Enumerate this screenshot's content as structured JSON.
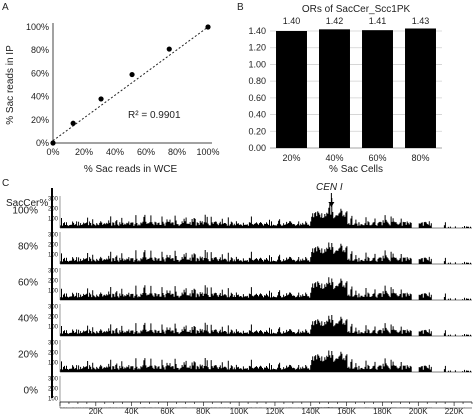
{
  "panels": {
    "a": "A",
    "b": "B",
    "c": "C"
  },
  "chart_data": [
    {
      "type": "scatter",
      "xlabel": "% Sac reads in WCE",
      "ylabel": "% Sac reads in IP",
      "xlim": [
        0,
        100
      ],
      "ylim": [
        0,
        100
      ],
      "x_ticks": [
        "0%",
        "20%",
        "40%",
        "60%",
        "80%",
        "100%"
      ],
      "y_ticks": [
        "0%",
        "20%",
        "40%",
        "60%",
        "80%",
        "100%"
      ],
      "points": [
        {
          "x": 0,
          "y": 0
        },
        {
          "x": 13,
          "y": 17
        },
        {
          "x": 31,
          "y": 38
        },
        {
          "x": 51,
          "y": 59
        },
        {
          "x": 75,
          "y": 81
        },
        {
          "x": 100,
          "y": 100
        }
      ],
      "trendline": {
        "style": "dotted",
        "from": [
          0,
          2
        ],
        "to": [
          100,
          100
        ]
      },
      "annotation": "R² = 0.9901",
      "grid": false
    },
    {
      "type": "bar",
      "title": "ORs of SacCer_Scc1PK",
      "xlabel": "% Sac Cells",
      "categories": [
        "20%",
        "40%",
        "60%",
        "80%"
      ],
      "values": [
        1.4,
        1.42,
        1.41,
        1.43
      ],
      "data_labels": [
        "1.40",
        "1.42",
        "1.41",
        "1.43"
      ],
      "ylim": [
        0,
        1.4
      ],
      "y_ticks": [
        "0.00",
        "0.20",
        "0.40",
        "0.60",
        "0.80",
        "1.00",
        "1.20",
        "1.40"
      ],
      "bar_color": "#000000",
      "grid": "horizontal"
    },
    {
      "type": "area",
      "row_header": "SacCer%",
      "annotation": "CEN I",
      "tracks": [
        {
          "label": "100%",
          "y_ticks": [
            "300",
            "200",
            "100"
          ],
          "cen_peak": 300
        },
        {
          "label": "80%",
          "y_ticks": [
            "300",
            "200",
            "100"
          ],
          "cen_peak": 210
        },
        {
          "label": "60%",
          "y_ticks": [
            "300",
            "200",
            "100"
          ],
          "cen_peak": 215
        },
        {
          "label": "40%",
          "y_ticks": [
            "300",
            "200",
            "100"
          ],
          "cen_peak": 210
        },
        {
          "label": "20%",
          "y_ticks": [
            "300",
            "200",
            "100"
          ],
          "cen_peak": 210
        },
        {
          "label": "0%",
          "y_ticks": [
            "300",
            "200",
            "100"
          ],
          "cen_peak": 5
        }
      ],
      "x_ticks": [
        "20K",
        "40K",
        "60K",
        "80K",
        "100K",
        "120K",
        "140K",
        "160K",
        "180K",
        "200K",
        "220K"
      ],
      "xlim": [
        0,
        230000
      ],
      "y_range": [
        0,
        320
      ],
      "fill_color": "#000000"
    }
  ]
}
